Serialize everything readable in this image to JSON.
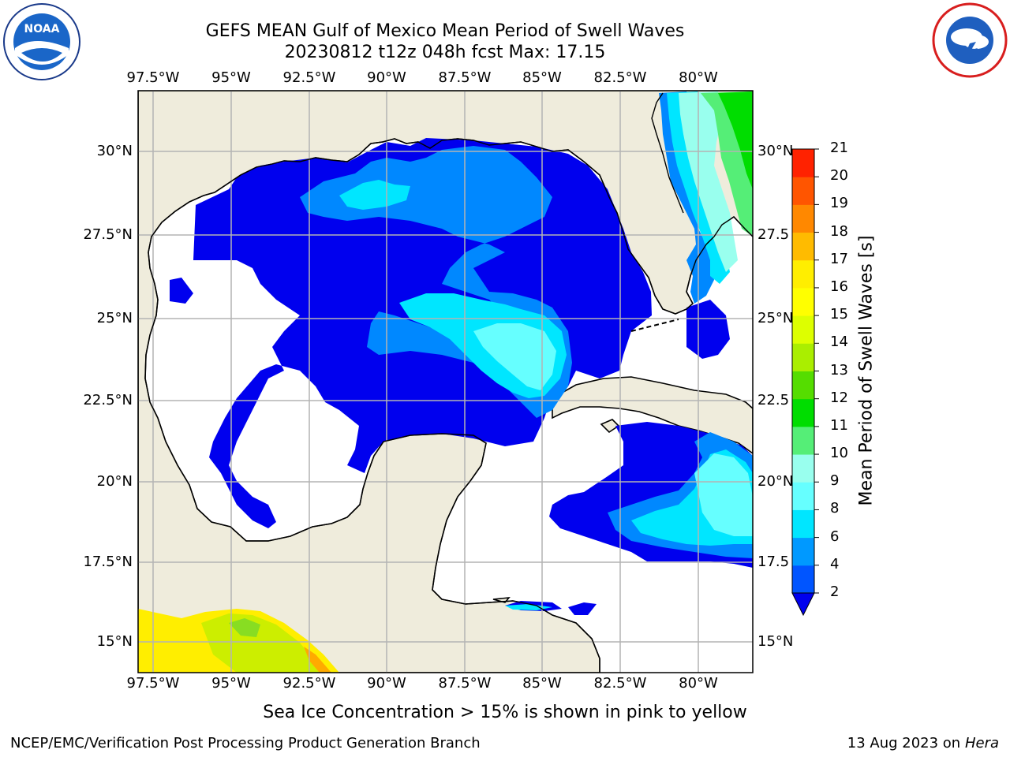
{
  "title_line1": "GEFS MEAN Gulf of Mexico Mean Period of Swell Waves",
  "title_line2": "20230812 t12z 048h fcst   Max: 17.15",
  "logos": {
    "left": "noaa-logo",
    "left_text": "NATIONAL OCEANIC AND ATMOSPHERIC ADMINISTRATION · U.S. DEPARTMENT OF COMMERCE · NOAA",
    "right": "nws-logo",
    "right_text": "NATIONAL WEATHER SERVICE"
  },
  "map": {
    "lon_labels_top": [
      "97.5°W",
      "95°W",
      "92.5°W",
      "90°W",
      "87.5°W",
      "85°W",
      "82.5°W",
      "80°W"
    ],
    "lon_labels_bottom": [
      "97.5°W",
      "95°W",
      "92.5°W",
      "90°W",
      "87.5°W",
      "85°W",
      "82.5°W",
      "80°W"
    ],
    "lat_labels_left": [
      "30°N",
      "27.5°N",
      "25°N",
      "22.5°N",
      "20°N",
      "17.5°N",
      "15°N"
    ],
    "lat_labels_right": [
      "30°N",
      "27.5",
      "25°N",
      "22.5",
      "20°N",
      "17.5",
      "15°N"
    ],
    "colors": {
      "land": "#efecdc",
      "grid": "#b4b4b4",
      "coast": "#000000"
    }
  },
  "colorbar": {
    "label": "Mean Period of Swell Waves [s]",
    "ticks": [
      "2",
      "4",
      "6",
      "8",
      "9",
      "10",
      "11",
      "12",
      "13",
      "14",
      "15",
      "16",
      "17",
      "18",
      "19",
      "20",
      "21"
    ],
    "colors": [
      "#0055ff",
      "#0099ff",
      "#00e6ff",
      "#66ffff",
      "#99ffee",
      "#55ee77",
      "#00dd00",
      "#55dd00",
      "#aaee00",
      "#ddff00",
      "#ffff00",
      "#ffee00",
      "#ffbb00",
      "#ff8800",
      "#ff5500",
      "#ff2200"
    ],
    "extend_color": "#0000ee"
  },
  "ice_note": "Sea Ice Concentration > 15% is shown in pink to yellow",
  "footer_left": "NCEP/EMC/Verification Post Processing Product Generation Branch",
  "footer_date": "13 Aug 2023 on",
  "footer_machine": "Hera"
}
